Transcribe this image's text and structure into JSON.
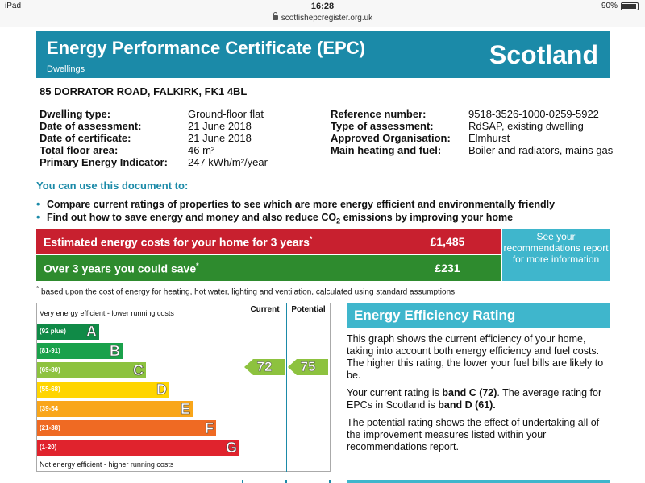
{
  "status_bar": {
    "device": "iPad",
    "time": "16:28",
    "battery": "90%",
    "url": "scottishepcregister.org.uk"
  },
  "header": {
    "title": "Energy Performance Certificate (EPC)",
    "subtitle": "Dwellings",
    "country": "Scotland",
    "color": "#1b8aa8"
  },
  "address": "85 DORRATOR ROAD, FALKIRK, FK1 4BL",
  "details_left": [
    {
      "k": "Dwelling type:",
      "v": "Ground-floor flat"
    },
    {
      "k": "Date of assessment:",
      "v": "21 June 2018"
    },
    {
      "k": "Date of certificate:",
      "v": "21 June 2018"
    },
    {
      "k": "Total floor area:",
      "v": "46 m²"
    },
    {
      "k": "Primary Energy Indicator:",
      "v": "247 kWh/m²/year"
    }
  ],
  "details_right": [
    {
      "k": "Reference number:",
      "v": "9518-3526-1000-0259-5922"
    },
    {
      "k": "Type of assessment:",
      "v": "RdSAP, existing dwelling"
    },
    {
      "k": "Approved Organisation:",
      "v": "Elmhurst"
    },
    {
      "k": "Main heating and fuel:",
      "v": "Boiler and radiators, mains gas"
    }
  ],
  "use": {
    "title": "You can use this document to:",
    "bullet1": "Compare current ratings of properties to see which are more energy efficient and environmentally friendly",
    "bullet2_a": "Find out how to save energy and money and also reduce CO",
    "bullet2_sub": "2",
    "bullet2_b": " emissions by improving your home"
  },
  "costs": {
    "est_label": "Estimated energy costs for your home for 3 years",
    "est_value": "£1,485",
    "save_label": "Over 3 years you could save",
    "save_value": "£231",
    "star": "*",
    "recommend": "See your recommendations report for more information",
    "footnote": "based upon the cost of energy for heating, hot water, lighting and ventilation, calculated using standard assumptions"
  },
  "rating_chart": {
    "top_label": "Very energy efficient - lower running costs",
    "bottom_label": "Not energy efficient - higher running costs",
    "col_current": "Current",
    "col_potential": "Potential",
    "bands": [
      {
        "range": "(92 plus)",
        "letter": "A",
        "color": "#108a47"
      },
      {
        "range": "(81-91)",
        "letter": "B",
        "color": "#1aa14b"
      },
      {
        "range": "(69-80)",
        "letter": "C",
        "color": "#8dc23f"
      },
      {
        "range": "(55-68)",
        "letter": "D",
        "color": "#ffd500"
      },
      {
        "range": "(39-54",
        "letter": "E",
        "color": "#f9a61a"
      },
      {
        "range": "(21-38)",
        "letter": "F",
        "color": "#ef6a23"
      },
      {
        "range": "(1-20)",
        "letter": "G",
        "color": "#e0232d"
      }
    ],
    "current": 72,
    "current_band": "C",
    "potential": 75,
    "potential_band": "C"
  },
  "eer": {
    "title": "Energy Efficiency Rating",
    "p1": "This graph shows the current efficiency of your home, taking into account both energy efficiency and fuel costs. The higher this rating, the lower your fuel bills are likely to be.",
    "p2_a": "Your current rating is ",
    "p2_b": "band C (72)",
    "p2_c": ". The average rating for EPCs in Scotland is ",
    "p2_d": "band D (61).",
    "p3": "The potential rating shows the effect of undertaking all of the improvement measures listed within your recommendations report."
  }
}
